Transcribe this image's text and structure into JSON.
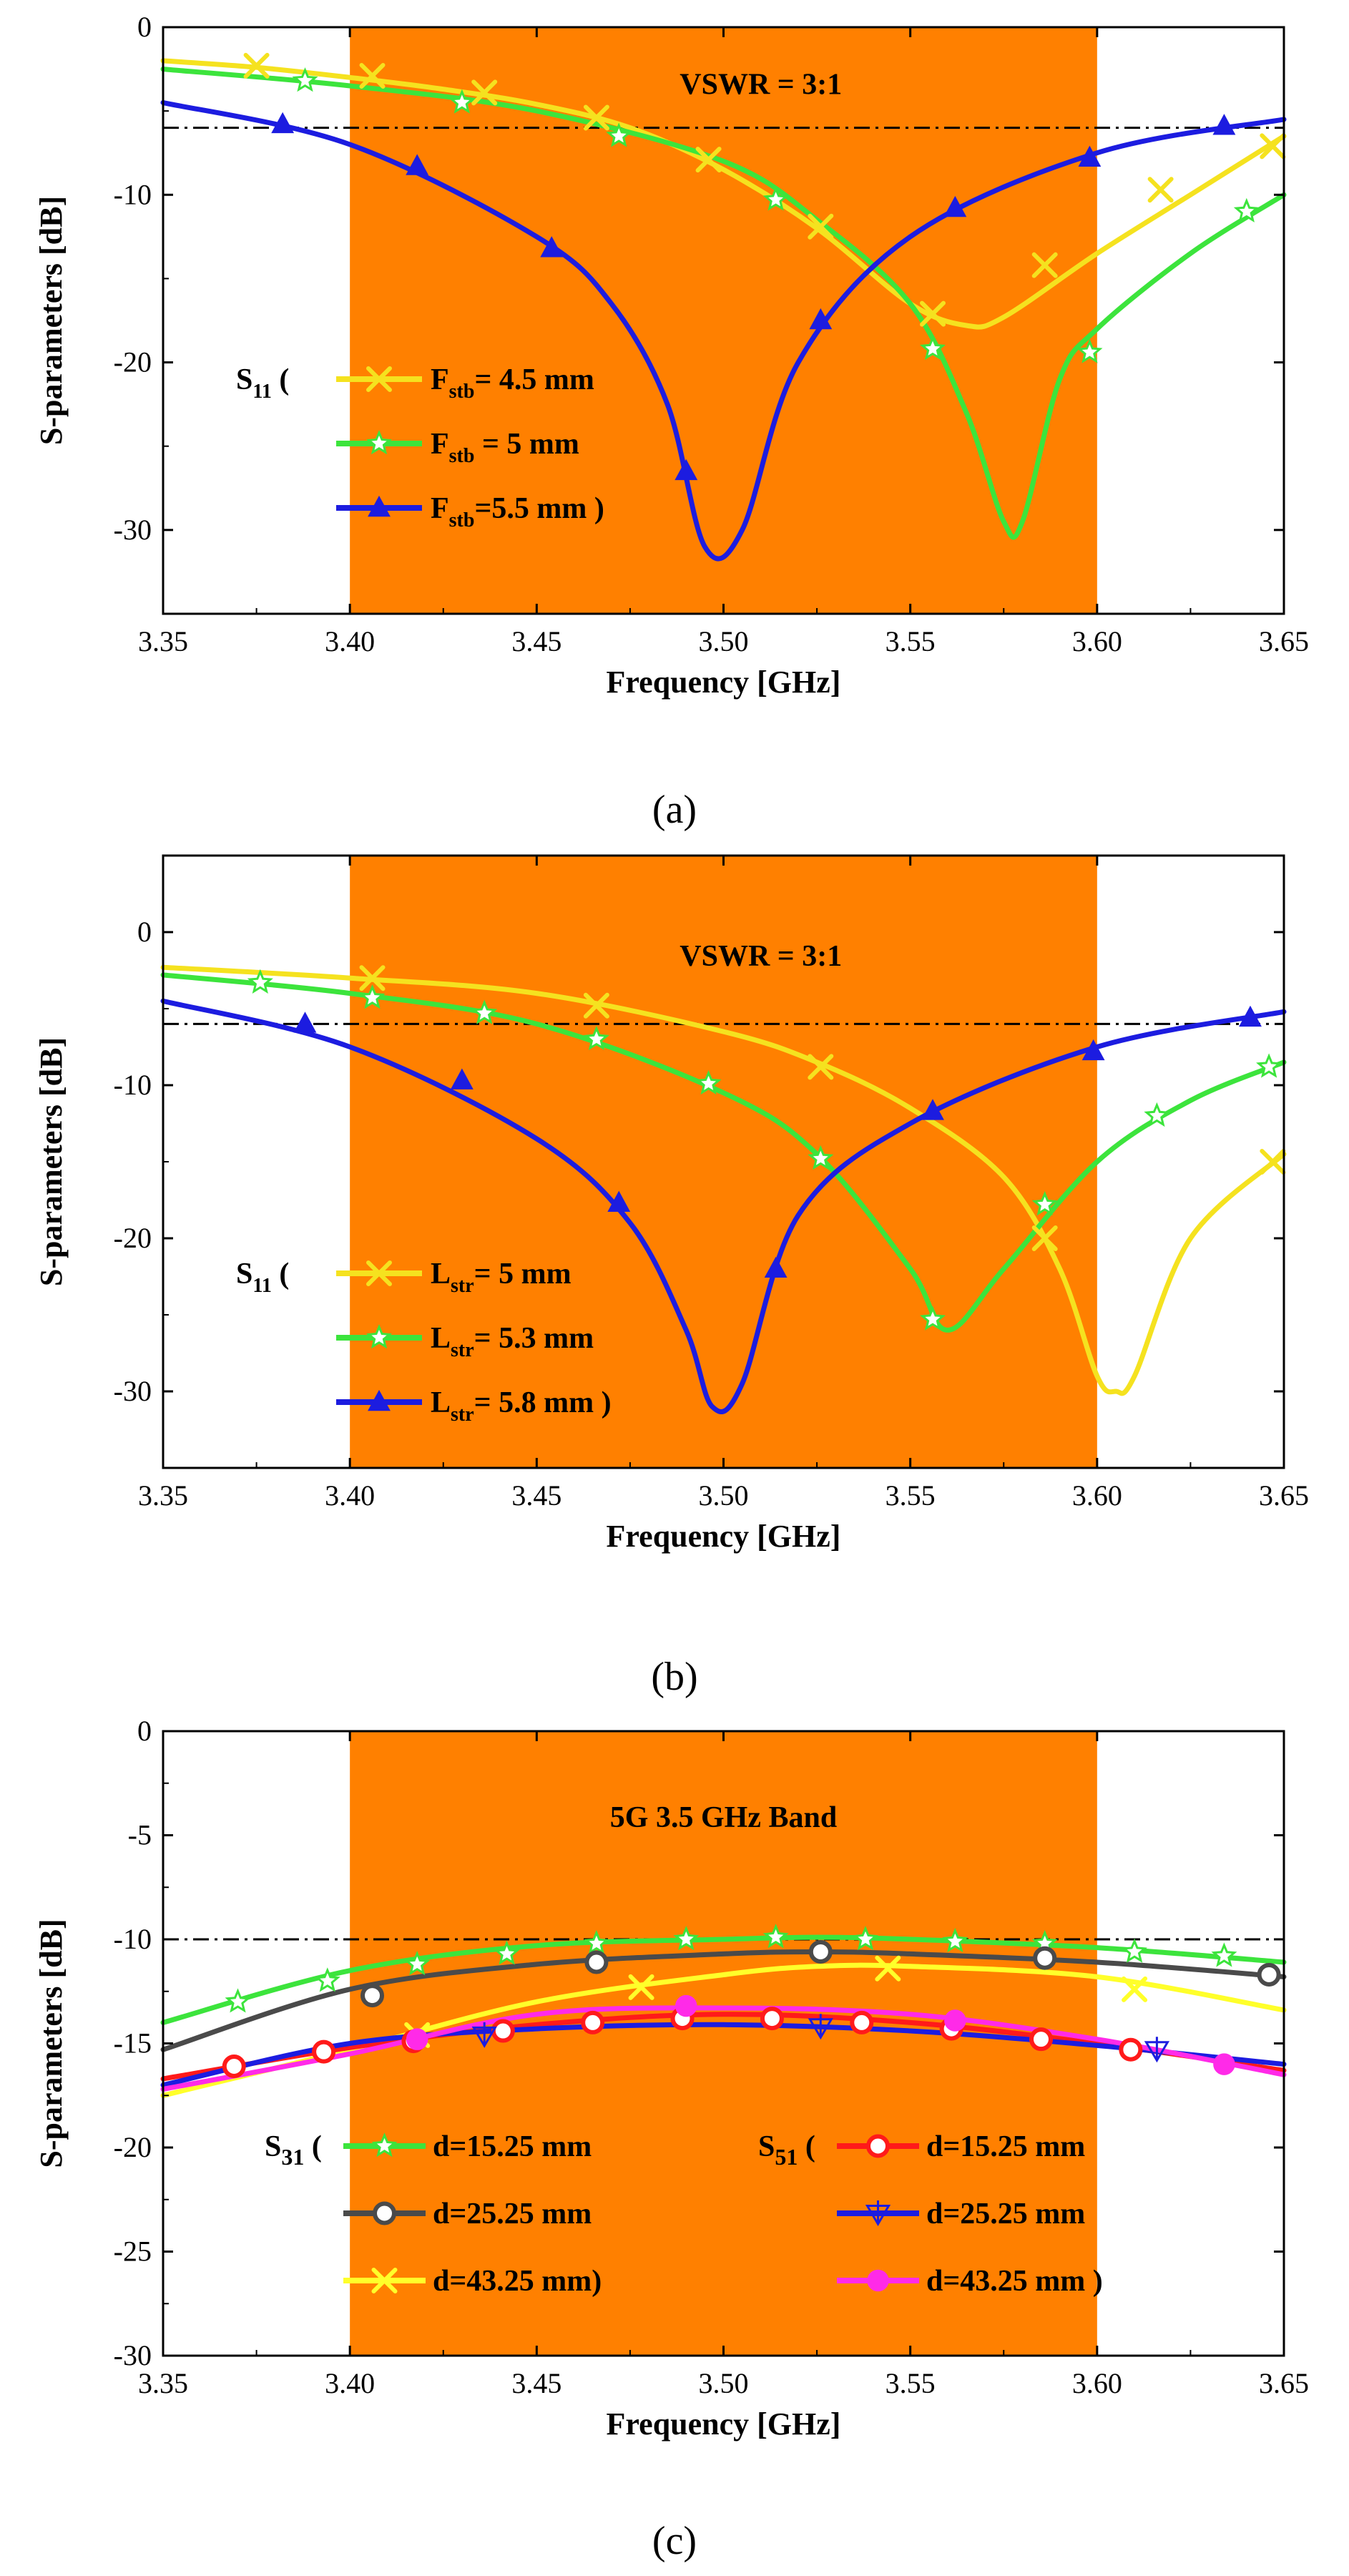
{
  "chart_data": [
    {
      "type": "line",
      "caption": "(a)",
      "xlabel": "Frequency [GHz]",
      "ylabel": "S-parameters [dB]",
      "xlim": [
        3.35,
        3.65
      ],
      "ylim": [
        -35,
        0
      ],
      "xticks": [
        "3.35",
        "3.40",
        "3.45",
        "3.50",
        "3.55",
        "3.60",
        "3.65"
      ],
      "yticks": [
        "0",
        "-10",
        "-20",
        "-30"
      ],
      "band": {
        "from": 3.4,
        "to": 3.6,
        "color": "#FF8000"
      },
      "annotations": [
        {
          "text": "VSWR = 3:1",
          "x": 3.51,
          "y": -4.0
        }
      ],
      "reference_line": {
        "y": -6.0,
        "style": "dash-dot"
      },
      "legend_prefix": {
        "main": "S",
        "sub": "11",
        "tail": " ("
      },
      "series": [
        {
          "legend_main": "F",
          "legend_sub": "stb",
          "legend_tail": "= 4.5 mm",
          "color": "#F5E21F",
          "marker": "x",
          "x": [
            3.35,
            3.375,
            3.4,
            3.425,
            3.45,
            3.475,
            3.5,
            3.525,
            3.55,
            3.565,
            3.575,
            3.6,
            3.625,
            3.65
          ],
          "y": [
            -2.0,
            -2.4,
            -3.0,
            -3.7,
            -4.6,
            -6.0,
            -8.5,
            -12.0,
            -16.5,
            -17.8,
            -17.3,
            -13.5,
            -10.0,
            -6.5
          ],
          "marker_x": [
            3.375,
            3.406,
            3.436,
            3.466,
            3.496,
            3.526,
            3.556,
            3.586,
            3.617,
            3.647
          ],
          "marker_y": [
            -2.3,
            -2.9,
            -3.9,
            -5.4,
            -7.9,
            -11.9,
            -17.1,
            -14.2,
            -9.7,
            -7.1
          ]
        },
        {
          "legend_main": "F",
          "legend_sub": "stb",
          "legend_tail": " = 5 mm",
          "color": "#3CE43C",
          "marker": "star",
          "x": [
            3.35,
            3.4,
            3.45,
            3.5,
            3.525,
            3.55,
            3.565,
            3.575,
            3.58,
            3.59,
            3.6,
            3.625,
            3.65
          ],
          "y": [
            -2.5,
            -3.5,
            -5.0,
            -8.0,
            -11.5,
            -16.5,
            -23.0,
            -29.5,
            -29.5,
            -21.0,
            -18.0,
            -13.5,
            -10.0
          ],
          "marker_x": [
            3.388,
            3.43,
            3.472,
            3.514,
            3.556,
            3.598,
            3.64
          ],
          "marker_y": [
            -3.2,
            -4.5,
            -6.5,
            -10.3,
            -19.2,
            -19.4,
            -11.0
          ]
        },
        {
          "legend_main": "F",
          "legend_sub": "stb",
          "legend_tail": "=5.5 mm )",
          "color": "#1C1CE0",
          "marker": "triangle",
          "x": [
            3.35,
            3.4,
            3.45,
            3.47,
            3.485,
            3.495,
            3.505,
            3.52,
            3.55,
            3.6,
            3.65
          ],
          "y": [
            -4.5,
            -7.0,
            -12.5,
            -16.5,
            -22.5,
            -31.0,
            -30.0,
            -20.0,
            -12.5,
            -7.5,
            -5.5
          ],
          "marker_x": [
            3.382,
            3.418,
            3.454,
            3.49,
            3.526,
            3.562,
            3.598,
            3.634
          ],
          "marker_y": [
            -5.8,
            -8.3,
            -13.2,
            -26.5,
            -17.5,
            -10.8,
            -7.8,
            -5.9
          ]
        }
      ]
    },
    {
      "type": "line",
      "caption": "(b)",
      "xlabel": "Frequency [GHz]",
      "ylabel": "S-parameters [dB]",
      "xlim": [
        3.35,
        3.65
      ],
      "ylim": [
        -35,
        5
      ],
      "xticks": [
        "3.35",
        "3.40",
        "3.45",
        "3.50",
        "3.55",
        "3.60",
        "3.65"
      ],
      "yticks": [
        "0",
        "-10",
        "-20",
        "-30"
      ],
      "band": {
        "from": 3.4,
        "to": 3.6,
        "color": "#FF8000"
      },
      "annotations": [
        {
          "text": "VSWR = 3:1",
          "x": 3.51,
          "y": -2.2
        }
      ],
      "reference_line": {
        "y": -6.0,
        "style": "dash-dot"
      },
      "legend_prefix": {
        "main": "S",
        "sub": "11",
        "tail": " ("
      },
      "series": [
        {
          "legend_main": "L",
          "legend_sub": "str",
          "legend_tail": "= 5 mm",
          "color": "#F5E21F",
          "marker": "x",
          "x": [
            3.35,
            3.4,
            3.45,
            3.5,
            3.525,
            3.55,
            3.575,
            3.59,
            3.6,
            3.605,
            3.61,
            3.625,
            3.65
          ],
          "y": [
            -2.3,
            -3.0,
            -4.0,
            -6.5,
            -8.5,
            -11.5,
            -16.0,
            -22.0,
            -29.0,
            -30.0,
            -29.0,
            -20.0,
            -14.5
          ],
          "marker_x": [
            3.406,
            3.466,
            3.526,
            3.586,
            3.647
          ],
          "marker_y": [
            -3.0,
            -4.8,
            -8.8,
            -20.0,
            -15.0
          ]
        },
        {
          "legend_main": "L",
          "legend_sub": "str",
          "legend_tail": "= 5.3 mm",
          "color": "#3CE43C",
          "marker": "star",
          "x": [
            3.35,
            3.4,
            3.45,
            3.5,
            3.525,
            3.55,
            3.56,
            3.575,
            3.6,
            3.625,
            3.65
          ],
          "y": [
            -2.8,
            -4.0,
            -6.0,
            -10.5,
            -14.5,
            -22.0,
            -26.0,
            -22.0,
            -15.0,
            -11.0,
            -8.5
          ],
          "marker_x": [
            3.376,
            3.406,
            3.436,
            3.466,
            3.496,
            3.526,
            3.556,
            3.586,
            3.616,
            3.646
          ],
          "marker_y": [
            -3.3,
            -4.3,
            -5.3,
            -7.0,
            -9.9,
            -14.8,
            -25.3,
            -17.8,
            -12.0,
            -8.8
          ]
        },
        {
          "legend_main": "L",
          "legend_sub": "str",
          "legend_tail": "= 5.8 mm )",
          "color": "#1C1CE0",
          "marker": "triangle",
          "x": [
            3.35,
            3.4,
            3.45,
            3.475,
            3.49,
            3.497,
            3.505,
            3.52,
            3.55,
            3.6,
            3.65
          ],
          "y": [
            -4.5,
            -7.5,
            -13.5,
            -19.0,
            -26.0,
            -31.0,
            -29.5,
            -18.5,
            -12.5,
            -7.5,
            -5.2
          ],
          "marker_x": [
            3.388,
            3.43,
            3.472,
            3.514,
            3.556,
            3.599,
            3.641
          ],
          "marker_y": [
            -6.0,
            -9.7,
            -17.7,
            -22.0,
            -11.7,
            -7.8,
            -5.6
          ]
        }
      ]
    },
    {
      "type": "line",
      "caption": "(c)",
      "xlabel": "Frequency [GHz]",
      "ylabel": "S-parameters [dB]",
      "xlim": [
        3.35,
        3.65
      ],
      "ylim": [
        -30,
        0
      ],
      "xticks": [
        "3.35",
        "3.40",
        "3.45",
        "3.50",
        "3.55",
        "3.60",
        "3.65"
      ],
      "yticks": [
        "0",
        "-5",
        "-10",
        "-15",
        "-20",
        "-25",
        "-30"
      ],
      "band": {
        "from": 3.4,
        "to": 3.6,
        "color": "#FF8000"
      },
      "annotations": [
        {
          "text": "5G   3.5 GHz Band",
          "x": 3.5,
          "y": -4.6
        }
      ],
      "reference_line": {
        "y": -10.0,
        "style": "dash-dot"
      },
      "legend_groups": [
        {
          "main": "S",
          "sub": "31",
          "tail": " ("
        },
        {
          "main": "S",
          "sub": "51",
          "tail": " ("
        }
      ],
      "series": [
        {
          "group": 0,
          "name": "d=15.25 mm",
          "color": "#3CE43C",
          "marker": "star",
          "x": [
            3.35,
            3.4,
            3.45,
            3.5,
            3.525,
            3.55,
            3.6,
            3.65
          ],
          "y": [
            -14.0,
            -11.5,
            -10.3,
            -10.0,
            -9.9,
            -10.0,
            -10.4,
            -11.1
          ],
          "marker_x": [
            3.37,
            3.394,
            3.418,
            3.442,
            3.466,
            3.49,
            3.514,
            3.538,
            3.562,
            3.586,
            3.61,
            3.634
          ],
          "marker_y": [
            -13.0,
            -12.0,
            -11.2,
            -10.7,
            -10.2,
            -10.0,
            -9.9,
            -10.0,
            -10.1,
            -10.2,
            -10.6,
            -10.8
          ]
        },
        {
          "group": 0,
          "name": "d=25.25 mm",
          "color": "#4A4A4A",
          "marker": "circle-open",
          "x": [
            3.35,
            3.4,
            3.45,
            3.5,
            3.525,
            3.55,
            3.6,
            3.65
          ],
          "y": [
            -15.3,
            -12.4,
            -11.2,
            -10.7,
            -10.6,
            -10.7,
            -11.1,
            -11.8
          ],
          "marker_x": [
            3.406,
            3.466,
            3.526,
            3.586,
            3.646
          ],
          "marker_y": [
            -12.7,
            -11.1,
            -10.6,
            -10.9,
            -11.7
          ]
        },
        {
          "group": 0,
          "name": "d=43.25 mm)",
          "color": "#FFFF2A",
          "marker": "x",
          "x": [
            3.35,
            3.4,
            3.45,
            3.5,
            3.525,
            3.55,
            3.6,
            3.65
          ],
          "y": [
            -17.5,
            -15.3,
            -13.0,
            -11.7,
            -11.3,
            -11.3,
            -11.8,
            -13.4
          ],
          "marker_x": [
            3.418,
            3.478,
            3.544,
            3.61
          ],
          "marker_y": [
            -14.6,
            -12.3,
            -11.4,
            -12.4
          ]
        },
        {
          "group": 1,
          "name": "d=15.25 mm",
          "color": "#FF1A1A",
          "marker": "circle-open",
          "x": [
            3.35,
            3.4,
            3.45,
            3.5,
            3.55,
            3.6,
            3.65
          ],
          "y": [
            -16.7,
            -15.2,
            -14.1,
            -13.6,
            -14.0,
            -15.0,
            -16.3
          ],
          "marker_x": [
            3.369,
            3.393,
            3.417,
            3.441,
            3.465,
            3.489,
            3.513,
            3.537,
            3.561,
            3.585,
            3.609
          ],
          "marker_y": [
            -16.1,
            -15.4,
            -14.9,
            -14.4,
            -14.0,
            -13.8,
            -13.8,
            -14.0,
            -14.3,
            -14.8,
            -15.3
          ]
        },
        {
          "group": 1,
          "name": "d=25.25 mm",
          "color": "#1C1CE0",
          "marker": "cross-triangle",
          "x": [
            3.35,
            3.4,
            3.45,
            3.5,
            3.55,
            3.6,
            3.65
          ],
          "y": [
            -17.0,
            -15.0,
            -14.3,
            -14.1,
            -14.4,
            -15.1,
            -16.0
          ],
          "marker_x": [
            3.436,
            3.526,
            3.616
          ],
          "marker_y": [
            -14.6,
            -14.2,
            -15.3
          ]
        },
        {
          "group": 1,
          "name": "d=43.25 mm )",
          "color": "#FF2AE8",
          "marker": "circle-filled",
          "x": [
            3.35,
            3.4,
            3.45,
            3.5,
            3.55,
            3.6,
            3.65
          ],
          "y": [
            -17.2,
            -15.5,
            -13.6,
            -13.3,
            -13.6,
            -14.8,
            -16.5
          ],
          "marker_x": [
            3.418,
            3.49,
            3.562,
            3.634
          ],
          "marker_y": [
            -14.8,
            -13.2,
            -13.9,
            -16.0
          ]
        }
      ]
    }
  ]
}
